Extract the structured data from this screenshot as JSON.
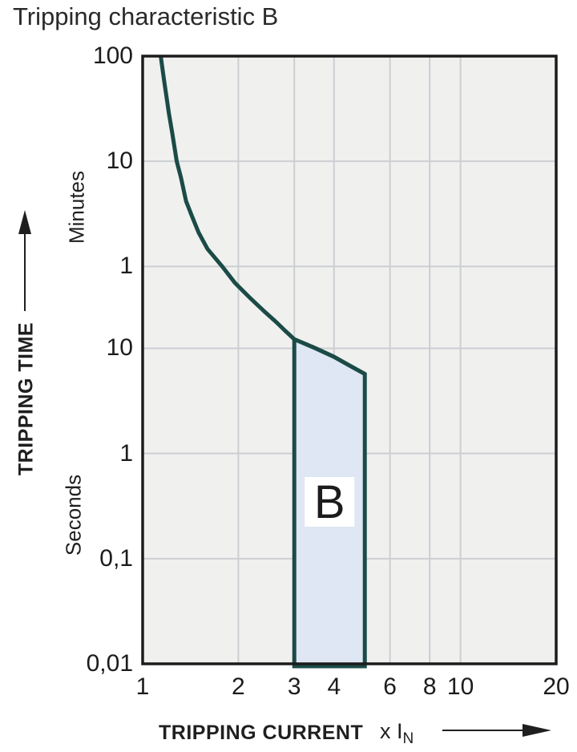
{
  "title": "Tripping characteristic B",
  "colors": {
    "curve": "#1b4b46",
    "band_fill": "#dfe6f4",
    "plot_bg": "#f0f0ef",
    "gridline": "#cdced3",
    "plot_border": "#1c1c1c",
    "label_bg": "#ffffff",
    "text": "#1f1f1f"
  },
  "chart_data": {
    "type": "area",
    "title": "Tripping characteristic B",
    "x_axis": {
      "label": "TRIPPING CURRENT",
      "unit_main": "x I",
      "unit_subscript": "N",
      "scale": "log",
      "min": 1,
      "max": 20,
      "ticks": [
        {
          "label": "1",
          "value": 1
        },
        {
          "label": "2",
          "value": 2
        },
        {
          "label": "3",
          "value": 3
        },
        {
          "label": "4",
          "value": 4
        },
        {
          "label": "6",
          "value": 6
        },
        {
          "label": "8",
          "value": 8
        },
        {
          "label": "10",
          "value": 10
        },
        {
          "label": "20",
          "value": 20
        }
      ],
      "gridlines": [
        2,
        3,
        4,
        6,
        8,
        10
      ]
    },
    "y_axis": {
      "label": "TRIPPING TIME",
      "scale": "log",
      "min_seconds": 0.01,
      "max_seconds": 6000,
      "unit_regions": [
        {
          "label": "Minutes"
        },
        {
          "label": "Seconds"
        }
      ],
      "ticks": [
        {
          "label": "100",
          "seconds": 6000
        },
        {
          "label": "10",
          "seconds": 600
        },
        {
          "label": "1",
          "seconds": 60
        },
        {
          "label": "10",
          "seconds": 10
        },
        {
          "label": "1",
          "seconds": 1
        },
        {
          "label": "0,1",
          "seconds": 0.1
        },
        {
          "label": "0,01",
          "seconds": 0.01
        }
      ],
      "gridlines_seconds": [
        600,
        60,
        10,
        1,
        0.1
      ]
    },
    "curve": {
      "description": "upper tripping-time limit curve",
      "points": [
        [
          1.14,
          6000
        ],
        [
          1.155,
          4500
        ],
        [
          1.17,
          3400
        ],
        [
          1.19,
          2400
        ],
        [
          1.21,
          1700
        ],
        [
          1.24,
          1100
        ],
        [
          1.28,
          600
        ],
        [
          1.32,
          420
        ],
        [
          1.37,
          250
        ],
        [
          1.43,
          180
        ],
        [
          1.5,
          126
        ],
        [
          1.6,
          88
        ],
        [
          1.78,
          60
        ],
        [
          1.95,
          42
        ],
        [
          2.18,
          30
        ],
        [
          2.4,
          22.8
        ],
        [
          2.64,
          17.6
        ],
        [
          2.8,
          14.8
        ],
        [
          3.0,
          12.2
        ],
        [
          3.5,
          10.0
        ],
        [
          4.0,
          8.3
        ],
        [
          4.5,
          6.8
        ],
        [
          5.0,
          5.7
        ]
      ]
    },
    "band": {
      "label": "B",
      "x_min": 3,
      "x_max": 5,
      "top_points": [
        [
          3.0,
          12.2
        ],
        [
          3.5,
          10.0
        ],
        [
          4.0,
          8.3
        ],
        [
          4.5,
          6.8
        ],
        [
          5.0,
          5.7
        ]
      ],
      "bottom_seconds": 0.01
    }
  }
}
